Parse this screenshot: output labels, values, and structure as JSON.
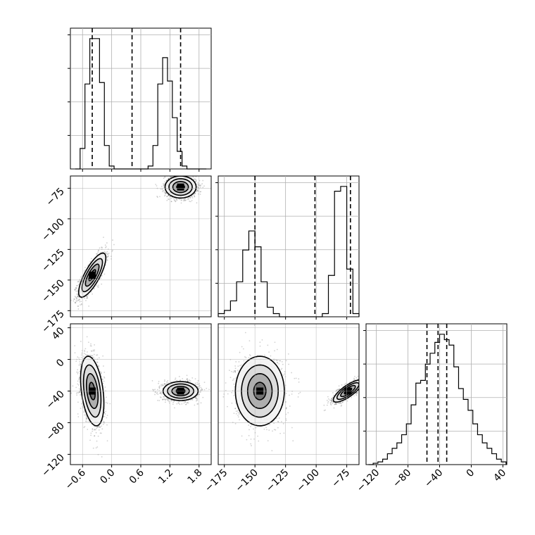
{
  "chart_data": {
    "type": "corner",
    "grid": true,
    "variables": [
      {
        "range": [
          -0.85,
          2.05
        ],
        "ticks": [
          -0.6,
          0.0,
          0.6,
          1.2,
          1.8
        ],
        "tick_labels": [
          "−0.6",
          "0.0",
          "0.6",
          "1.2",
          "1.8"
        ]
      },
      {
        "range": [
          -180,
          -65
        ],
        "ticks": [
          -175,
          -150,
          -125,
          -100,
          -75
        ],
        "tick_labels": [
          "−175",
          "−150",
          "−125",
          "−100",
          "−75"
        ]
      },
      {
        "range": [
          -133,
          45
        ],
        "ticks": [
          -120,
          -80,
          -40,
          0,
          40
        ],
        "tick_labels": [
          "−120",
          "−80",
          "−40",
          "0",
          "40"
        ]
      }
    ],
    "histograms": [
      {
        "variable": 0,
        "bin_edges": [
          -0.75,
          -0.65,
          -0.55,
          -0.45,
          -0.35,
          -0.25,
          -0.15,
          -0.05,
          0.05,
          0.15,
          0.25,
          0.35,
          0.45,
          0.55,
          0.65,
          0.75,
          0.85,
          0.95,
          1.05,
          1.15,
          1.25,
          1.35,
          1.45,
          1.55,
          1.65,
          1.75,
          1.85,
          1.95
        ],
        "counts": [
          0,
          14,
          58,
          89,
          89,
          59,
          16,
          2,
          0,
          0,
          0,
          0,
          0,
          0,
          0,
          2,
          16,
          58,
          76,
          60,
          35,
          12,
          2,
          0,
          0,
          0,
          0
        ],
        "quantile_lines": [
          -0.4,
          0.42,
          1.42
        ]
      },
      {
        "variable": 1,
        "bin_edges": [
          -180,
          -175,
          -170,
          -165,
          -160,
          -155,
          -150,
          -145,
          -140,
          -135,
          -130,
          -125,
          -120,
          -115,
          -110,
          -105,
          -100,
          -95,
          -90,
          -85,
          -80,
          -75,
          -70,
          -65
        ],
        "counts": [
          2,
          4,
          10,
          22,
          42,
          54,
          44,
          22,
          6,
          2,
          0,
          0,
          0,
          0,
          0,
          0,
          0,
          2,
          26,
          79,
          82,
          30,
          2
        ],
        "quantile_lines": [
          -150,
          -101,
          -72
        ]
      },
      {
        "variable": 2,
        "bin_edges": [
          -130,
          -124,
          -118,
          -112,
          -106,
          -100,
          -94,
          -88,
          -82,
          -76,
          -70,
          -64,
          -58,
          -52,
          -46,
          -40,
          -34,
          -28,
          -22,
          -16,
          -10,
          -4,
          2,
          8,
          14,
          20,
          26,
          32,
          38,
          44
        ],
        "counts": [
          0,
          1,
          2,
          4,
          8,
          12,
          16,
          22,
          30,
          44,
          60,
          62,
          74,
          82,
          90,
          96,
          92,
          88,
          72,
          56,
          48,
          40,
          30,
          22,
          16,
          12,
          8,
          4,
          2
        ],
        "quantile_lines": [
          -56,
          -42,
          -31
        ]
      }
    ],
    "scatter_panels": [
      {
        "x_variable": 0,
        "y_variable": 1,
        "clusters": [
          {
            "mean": [
              -0.4,
              -146
            ],
            "sd": [
              0.14,
              9
            ],
            "corr": 0.78,
            "n": 1300
          },
          {
            "mean": [
              1.42,
              -74
            ],
            "sd": [
              0.16,
              4.5
            ],
            "corr": 0.0,
            "n": 1300
          }
        ]
      },
      {
        "x_variable": 0,
        "y_variable": 2,
        "clusters": [
          {
            "mean": [
              -0.4,
              -40
            ],
            "sd": [
              0.12,
              22
            ],
            "corr": -0.35,
            "n": 1300
          },
          {
            "mean": [
              1.42,
              -40
            ],
            "sd": [
              0.18,
              6
            ],
            "corr": 0.0,
            "n": 1300
          }
        ]
      },
      {
        "x_variable": 1,
        "y_variable": 2,
        "clusters": [
          {
            "mean": [
              -146,
              -40
            ],
            "sd": [
              10,
              22
            ],
            "corr": 0.0,
            "n": 1300
          },
          {
            "mean": [
              -74,
              -40
            ],
            "sd": [
              6,
              7
            ],
            "corr": 0.8,
            "n": 1300
          }
        ]
      }
    ]
  }
}
